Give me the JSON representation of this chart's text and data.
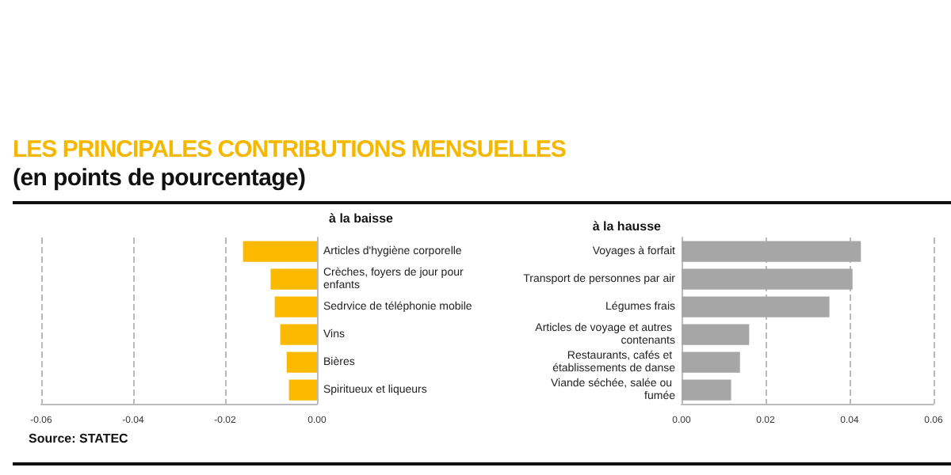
{
  "chart_data": [
    {
      "type": "bar",
      "orientation": "horizontal",
      "title": "LES PRINCIPALES CONTRIBUTIONS MENSUELLES",
      "subtitle": "(en points de pourcentage)",
      "annotations": [
        "à la baisse",
        "Source: STATEC"
      ],
      "categories": [
        "Articles d'hygiène corporelle",
        "Crèches, foyers de jour pour enfants",
        "Sedrvice de téléphonie mobile",
        "Vins",
        "Bières",
        "Spiritueux et liqueurs"
      ],
      "series": [
        {
          "color": "#fbb900",
          "values": [
            -0.0161,
            -0.0101,
            -0.0092,
            -0.008,
            -0.0066,
            -0.0061
          ]
        }
      ],
      "xlim": [
        -0.06,
        0
      ],
      "xticks": [
        {
          "value": -0.06,
          "label": "-0.06"
        },
        {
          "value": -0.04,
          "label": "-0.04"
        },
        {
          "value": -0.02,
          "label": "-0.02"
        },
        {
          "value": 0,
          "label": "0.00"
        }
      ],
      "grid": "x"
    },
    {
      "type": "bar",
      "orientation": "horizontal",
      "title": "à la hausse",
      "categories": [
        "Voyages à forfait",
        "Transport de personnes par air",
        "Légumes frais",
        "Articles de voyage et autres contenants",
        "Restaurants, cafés et établissements de danse",
        "Viande séchée, salée ou fumée"
      ],
      "series": [
        {
          "color": "#a6a6a6",
          "values": [
            0.0427,
            0.0407,
            0.0352,
            0.0161,
            0.0139,
            0.0118
          ]
        }
      ],
      "xlim": [
        0,
        0.06
      ],
      "xticks": [
        {
          "value": 0,
          "label": "0.00"
        },
        {
          "value": 0.02,
          "label": "0.02"
        },
        {
          "value": 0.04,
          "label": "0.04"
        },
        {
          "value": 0.06,
          "label": "0.06"
        }
      ],
      "grid": "x"
    }
  ]
}
